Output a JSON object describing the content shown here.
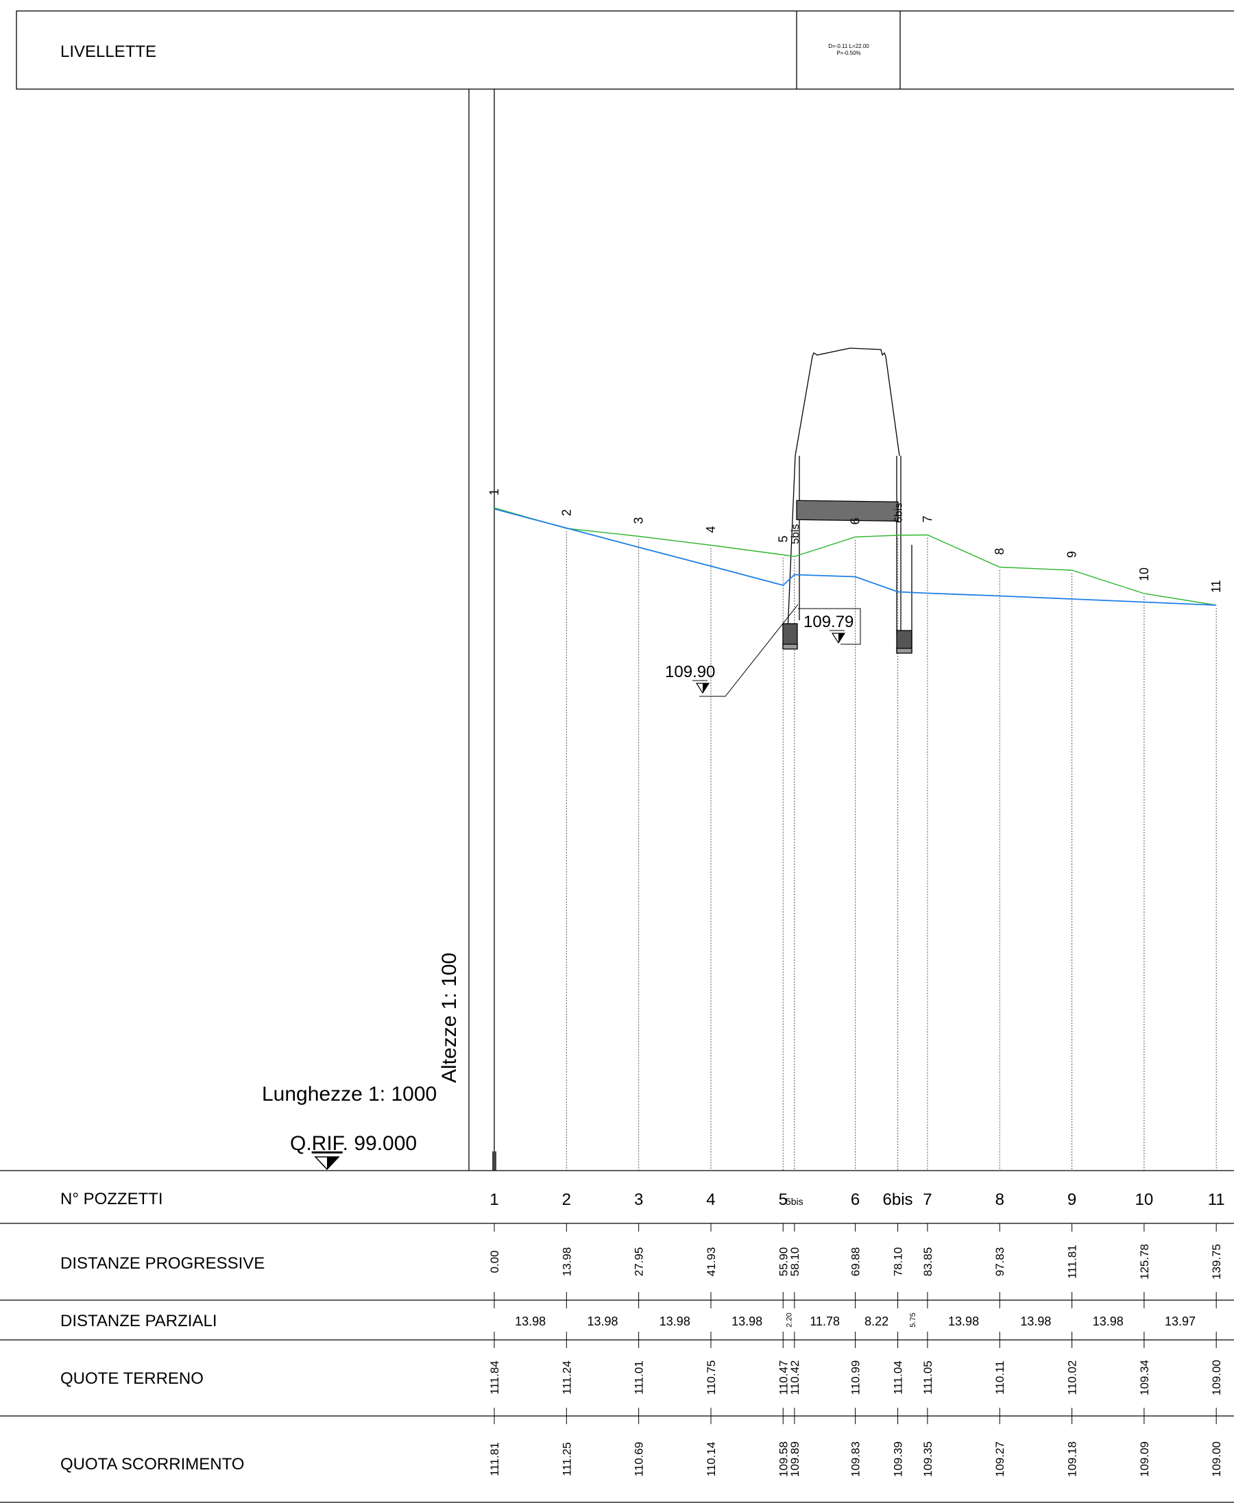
{
  "header": {
    "title": "LIVELLETTE",
    "segment_line1": "D=-0.11 L=22.00",
    "segment_line2": "P=-0.50%"
  },
  "scales": {
    "heights": "Altezze 1: 100",
    "lengths": "Lunghezze 1: 1000",
    "reference_prefix": "Q.",
    "reference_mid": "RIF",
    "reference_suffix": ". 99.000"
  },
  "elevation_marks": {
    "left": "109.90",
    "right": "109.79"
  },
  "row_labels": {
    "pozzetti": "N° POZZETTI",
    "progressive": "DISTANZE PROGRESSIVE",
    "parziali": "DISTANZE PARZIALI",
    "terreno": "QUOTE TERRENO",
    "scorrimento": "QUOTA SCORRIMENTO"
  },
  "colors": {
    "ground_line": "#2db62d",
    "invert_line": "#1c7fe6",
    "frame": "#000000"
  },
  "chart_data": {
    "type": "line",
    "series": [
      {
        "name": "QUOTE TERRENO",
        "x": [
          0.0,
          13.98,
          27.95,
          41.93,
          55.9,
          58.1,
          69.88,
          78.1,
          83.85,
          97.83,
          111.81,
          125.78,
          139.75
        ],
        "values": [
          111.84,
          111.24,
          111.01,
          110.75,
          110.47,
          110.42,
          110.99,
          111.04,
          111.05,
          110.11,
          110.02,
          109.34,
          109.0
        ]
      },
      {
        "name": "QUOTA SCORRIMENTO",
        "x": [
          0.0,
          13.98,
          27.95,
          41.93,
          55.9,
          58.1,
          69.88,
          78.1,
          83.85,
          97.83,
          111.81,
          125.78,
          139.75
        ],
        "values": [
          111.81,
          111.25,
          110.69,
          110.14,
          109.58,
          109.89,
          109.83,
          109.39,
          109.35,
          109.27,
          109.18,
          109.09,
          109.0
        ]
      }
    ],
    "stations": [
      {
        "id": "1",
        "prog": "0.00",
        "terr": "111.84",
        "scorr": "111.81"
      },
      {
        "id": "2",
        "prog": "13.98",
        "terr": "111.24",
        "scorr": "111.25"
      },
      {
        "id": "3",
        "prog": "27.95",
        "terr": "111.01",
        "scorr": "110.69"
      },
      {
        "id": "4",
        "prog": "41.93",
        "terr": "110.75",
        "scorr": "110.14"
      },
      {
        "id": "5",
        "prog": "55.90",
        "terr": "110.47",
        "scorr": "109.58"
      },
      {
        "id": "5bis",
        "prog": "58.10",
        "terr": "110.42",
        "scorr": "109.89"
      },
      {
        "id": "6",
        "prog": "69.88",
        "terr": "110.99",
        "scorr": "109.83"
      },
      {
        "id": "6bis",
        "prog": "78.10",
        "terr": "111.04",
        "scorr": "109.39"
      },
      {
        "id": "7",
        "prog": "83.85",
        "terr": "111.05",
        "scorr": "109.35"
      },
      {
        "id": "8",
        "prog": "97.83",
        "terr": "110.11",
        "scorr": "109.27"
      },
      {
        "id": "9",
        "prog": "111.81",
        "terr": "110.02",
        "scorr": "109.18"
      },
      {
        "id": "10",
        "prog": "125.78",
        "terr": "109.34",
        "scorr": "109.09"
      },
      {
        "id": "11",
        "prog": "139.75",
        "terr": "109.00",
        "scorr": "109.00"
      }
    ],
    "partials": [
      "13.98",
      "13.98",
      "13.98",
      "13.98",
      "2.20",
      "11.78",
      "8.22",
      "5.75",
      "13.98",
      "13.98",
      "13.98",
      "13.97"
    ],
    "xlabel": "",
    "ylabel": "",
    "grid": false
  }
}
